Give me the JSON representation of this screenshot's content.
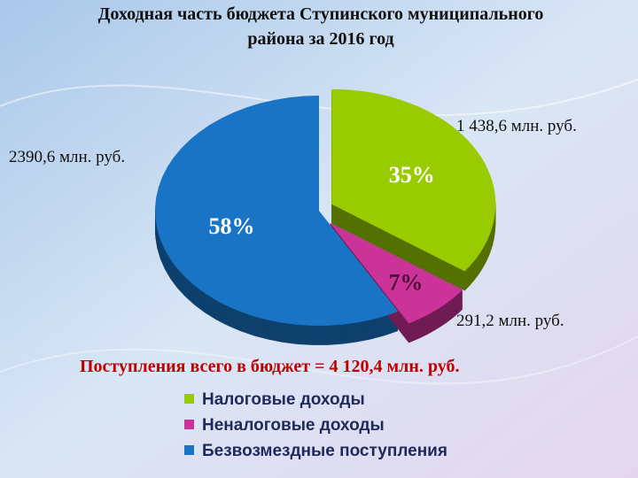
{
  "chart_data": {
    "type": "pie",
    "title": "Доходная часть бюджета Ступинского муниципального",
    "title_line2": "района за 2016 год",
    "subtitle": "Поступления всего в бюджет = 4 120,4 млн. руб.",
    "categories": [
      "Налоговые доходы",
      "Неналоговые доходы",
      "Безвозмездные поступления"
    ],
    "values": [
      1438.6,
      291.2,
      2390.6
    ],
    "value_labels": [
      "1 438,6 млн. руб.",
      "291,2 млн. руб.",
      "2390,6 млн. руб."
    ],
    "percent_labels": [
      "35%",
      "7%",
      "58%"
    ],
    "colors": [
      "#99cc00",
      "#cc3399",
      "#1a74c6"
    ],
    "legend": "bottom"
  }
}
